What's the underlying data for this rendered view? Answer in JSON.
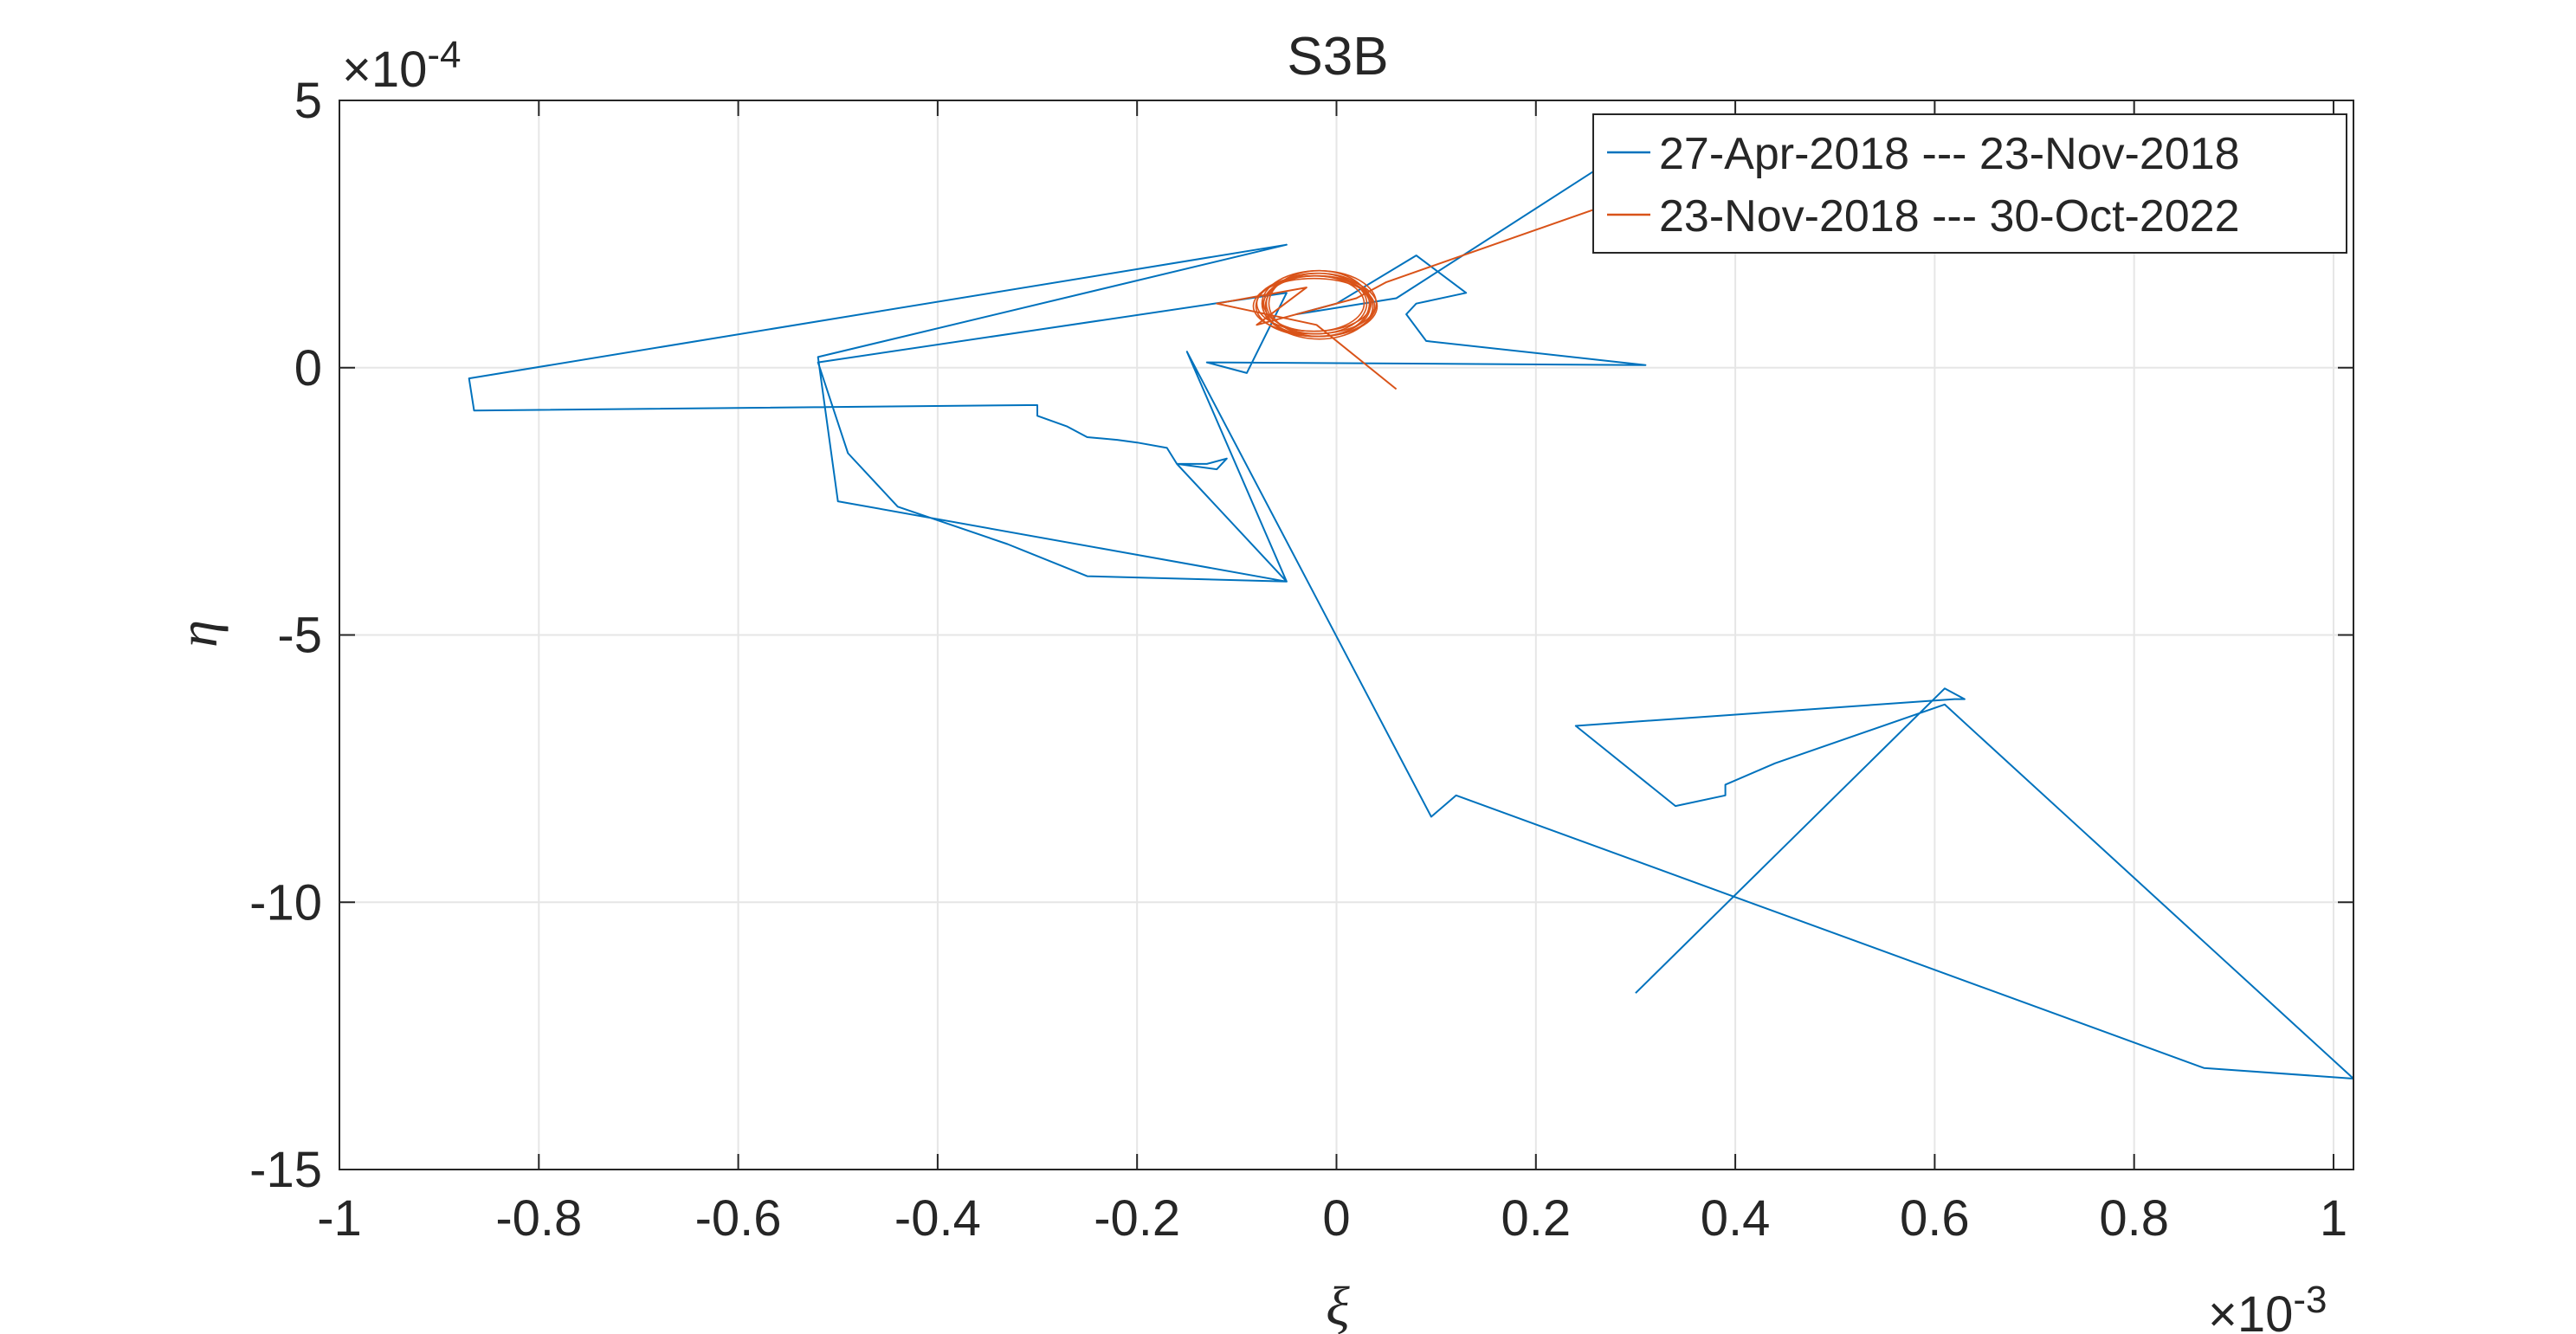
{
  "chart_data": {
    "type": "line",
    "title": "S3B",
    "xlabel": "ξ",
    "ylabel": "η",
    "x_exponent": {
      "base": "×10",
      "exp": "-3"
    },
    "y_exponent": {
      "base": "×10",
      "exp": "-4"
    },
    "xlim": [
      -1.0,
      1.02
    ],
    "ylim": [
      -15,
      5
    ],
    "xticks": [
      -1,
      -0.8,
      -0.6,
      -0.4,
      -0.2,
      0,
      0.2,
      0.4,
      0.6,
      0.8,
      1
    ],
    "xtick_labels": [
      "-1",
      "-0.8",
      "-0.6",
      "-0.4",
      "-0.2",
      "0",
      "0.2",
      "0.4",
      "0.6",
      "0.8",
      "1"
    ],
    "yticks": [
      -15,
      -10,
      -5,
      0,
      5
    ],
    "ytick_labels": [
      "-15",
      "-10",
      "-5",
      "0",
      "5"
    ],
    "grid": true,
    "legend": "top-right",
    "series": [
      {
        "name": "27-Apr-2018 --- 23-Nov-2018",
        "color": "#0072BD",
        "x": [
          0.3,
          0.61,
          0.63,
          0.62,
          0.24,
          0.34,
          0.39,
          0.39,
          0.44,
          0.61,
          1.02,
          0.87,
          0.12,
          0.095,
          -0.15,
          -0.05,
          -0.5,
          -0.52,
          -0.05,
          -0.87,
          -0.865,
          -0.31,
          -0.3,
          -0.3,
          -0.27,
          -0.25,
          -0.22,
          -0.2,
          -0.17,
          -0.16,
          -0.13,
          -0.11,
          -0.12,
          -0.16,
          -0.05,
          -0.25,
          -0.33,
          -0.44,
          -0.49,
          -0.52,
          -0.05,
          -0.09,
          -0.13,
          0.31,
          0.09,
          0.07,
          0.08,
          0.13,
          0.08,
          0.0,
          -0.04,
          0.06,
          0.26
        ],
        "y": [
          -11.7,
          -6.0,
          -6.2,
          -6.2,
          -6.7,
          -8.2,
          -8.0,
          -7.8,
          -7.4,
          -6.3,
          -13.3,
          -13.1,
          -8.0,
          -8.4,
          0.3,
          -4.0,
          -2.5,
          0.2,
          2.3,
          -0.2,
          -0.8,
          -0.7,
          -0.7,
          -0.9,
          -1.1,
          -1.3,
          -1.35,
          -1.4,
          -1.5,
          -1.8,
          -1.8,
          -1.7,
          -1.9,
          -1.8,
          -4.0,
          -3.9,
          -3.3,
          -2.6,
          -1.6,
          0.1,
          1.4,
          -0.1,
          0.1,
          0.05,
          0.5,
          1.0,
          1.2,
          1.4,
          2.1,
          1.2,
          1.0,
          1.3,
          3.7
        ]
      },
      {
        "name": "23-Nov-2018 --- 30-Oct-2022",
        "color": "#D95319",
        "x": [
          0.06,
          -0.02,
          -0.12,
          -0.03,
          -0.08,
          0.02,
          0.05,
          0.28
        ],
        "y": [
          -0.4,
          0.8,
          1.2,
          1.5,
          0.8,
          1.3,
          1.6,
          3.1
        ]
      }
    ]
  }
}
